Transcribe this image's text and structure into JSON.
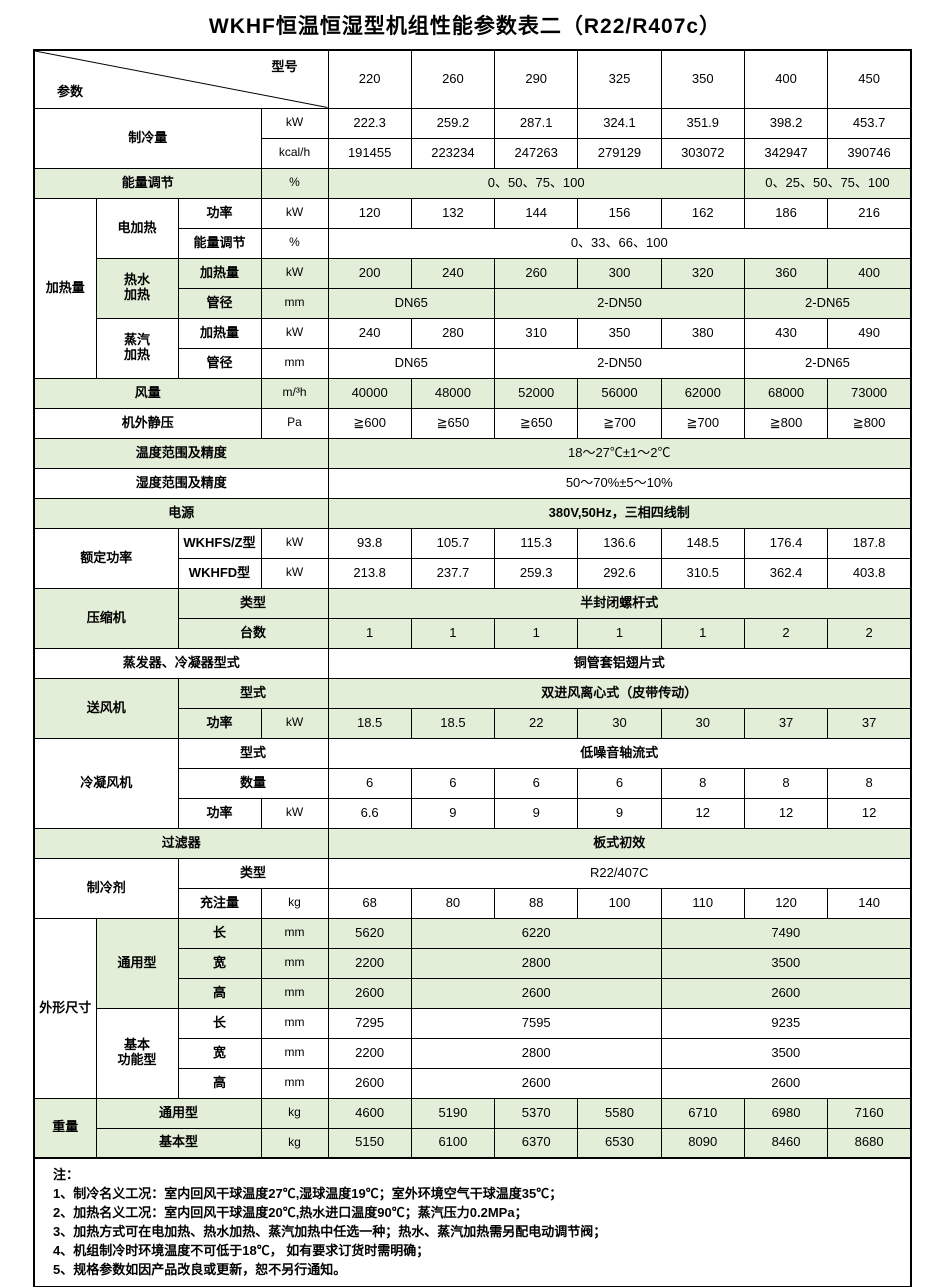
{
  "title": "WKHF恒温恒湿型机组性能参数表二（R22/R407c）",
  "colors": {
    "green_band": "#e2eed8",
    "border": "#000000",
    "background": "#ffffff"
  },
  "header": {
    "corner_top_right": "型号",
    "corner_bottom_left": "参数",
    "models": [
      "220",
      "260",
      "290",
      "325",
      "350",
      "400",
      "450"
    ]
  },
  "rows": [
    [
      {
        "t": "制冷量",
        "c": 3,
        "r": 2,
        "k": "h"
      },
      {
        "t": "kW",
        "k": "u"
      },
      {
        "t": "222.3"
      },
      {
        "t": "259.2"
      },
      {
        "t": "287.1"
      },
      {
        "t": "324.1"
      },
      {
        "t": "351.9"
      },
      {
        "t": "398.2"
      },
      {
        "t": "453.7"
      }
    ],
    [
      {
        "t": "kcal/h",
        "k": "u"
      },
      {
        "t": "191455"
      },
      {
        "t": "223234"
      },
      {
        "t": "247263"
      },
      {
        "t": "279129"
      },
      {
        "t": "303072"
      },
      {
        "t": "342947"
      },
      {
        "t": "390746"
      }
    ],
    [
      {
        "t": "能量调节",
        "c": 3,
        "k": "h",
        "g": 1
      },
      {
        "t": "%",
        "k": "u",
        "g": 1
      },
      {
        "t": "0、50、75、100",
        "c": 5,
        "g": 1
      },
      {
        "t": "0、25、50、75、100",
        "c": 2,
        "g": 1
      }
    ],
    [
      {
        "t": "加热量",
        "r": 6,
        "k": "h"
      },
      {
        "t": "电加热",
        "r": 2,
        "k": "h"
      },
      {
        "t": "功率",
        "k": "h"
      },
      {
        "t": "kW",
        "k": "u"
      },
      {
        "t": "120"
      },
      {
        "t": "132"
      },
      {
        "t": "144"
      },
      {
        "t": "156"
      },
      {
        "t": "162"
      },
      {
        "t": "186"
      },
      {
        "t": "216"
      }
    ],
    [
      {
        "t": "能量调节",
        "k": "h"
      },
      {
        "t": "%",
        "k": "u"
      },
      {
        "t": "0、33、66、100",
        "c": 7
      }
    ],
    [
      {
        "t": "热水\n加热",
        "r": 2,
        "k": "h",
        "g": 1
      },
      {
        "t": "加热量",
        "k": "h",
        "g": 1
      },
      {
        "t": "kW",
        "k": "u",
        "g": 1
      },
      {
        "t": "200",
        "g": 1
      },
      {
        "t": "240",
        "g": 1
      },
      {
        "t": "260",
        "g": 1
      },
      {
        "t": "300",
        "g": 1
      },
      {
        "t": "320",
        "g": 1
      },
      {
        "t": "360",
        "g": 1
      },
      {
        "t": "400",
        "g": 1
      }
    ],
    [
      {
        "t": "管径",
        "k": "h",
        "g": 1
      },
      {
        "t": "mm",
        "k": "u",
        "g": 1
      },
      {
        "t": "DN65",
        "c": 2,
        "g": 1
      },
      {
        "t": "2-DN50",
        "c": 3,
        "g": 1
      },
      {
        "t": "2-DN65",
        "c": 2,
        "g": 1
      }
    ],
    [
      {
        "t": "蒸汽\n加热",
        "r": 2,
        "k": "h"
      },
      {
        "t": "加热量",
        "k": "h"
      },
      {
        "t": "kW",
        "k": "u"
      },
      {
        "t": "240"
      },
      {
        "t": "280"
      },
      {
        "t": "310"
      },
      {
        "t": "350"
      },
      {
        "t": "380"
      },
      {
        "t": "430"
      },
      {
        "t": "490"
      }
    ],
    [
      {
        "t": "管径",
        "k": "h"
      },
      {
        "t": "mm",
        "k": "u"
      },
      {
        "t": "DN65",
        "c": 2
      },
      {
        "t": "2-DN50",
        "c": 3
      },
      {
        "t": "2-DN65",
        "c": 2
      }
    ],
    [
      {
        "t": "风量",
        "c": 3,
        "k": "h",
        "g": 1
      },
      {
        "t": "m/³h",
        "k": "u",
        "g": 1
      },
      {
        "t": "40000",
        "g": 1
      },
      {
        "t": "48000",
        "g": 1
      },
      {
        "t": "52000",
        "g": 1
      },
      {
        "t": "56000",
        "g": 1
      },
      {
        "t": "62000",
        "g": 1
      },
      {
        "t": "68000",
        "g": 1
      },
      {
        "t": "73000",
        "g": 1
      }
    ],
    [
      {
        "t": "机外静压",
        "c": 3,
        "k": "h"
      },
      {
        "t": "Pa",
        "k": "u"
      },
      {
        "t": "≧600"
      },
      {
        "t": "≧650"
      },
      {
        "t": "≧650"
      },
      {
        "t": "≧700"
      },
      {
        "t": "≧700"
      },
      {
        "t": "≧800"
      },
      {
        "t": "≧800"
      }
    ],
    [
      {
        "t": "温度范围及精度",
        "c": 4,
        "k": "h",
        "g": 1
      },
      {
        "t": "18～27℃±1～2℃",
        "c": 7,
        "g": 1
      }
    ],
    [
      {
        "t": "湿度范围及精度",
        "c": 4,
        "k": "h"
      },
      {
        "t": "50～70%±5～10%",
        "c": 7
      }
    ],
    [
      {
        "t": "电源",
        "c": 4,
        "k": "h",
        "g": 1
      },
      {
        "t": "380V,50Hz，三相四线制",
        "c": 7,
        "g": 1
      }
    ],
    [
      {
        "t": "额定功率",
        "c": 2,
        "r": 2,
        "k": "h"
      },
      {
        "t": "WKHFS/Z型",
        "k": "h"
      },
      {
        "t": "kW",
        "k": "u"
      },
      {
        "t": "93.8"
      },
      {
        "t": "105.7"
      },
      {
        "t": "115.3"
      },
      {
        "t": "136.6"
      },
      {
        "t": "148.5"
      },
      {
        "t": "176.4"
      },
      {
        "t": "187.8"
      }
    ],
    [
      {
        "t": "WKHFD型",
        "k": "h"
      },
      {
        "t": "kW",
        "k": "u"
      },
      {
        "t": "213.8"
      },
      {
        "t": "237.7"
      },
      {
        "t": "259.3"
      },
      {
        "t": "292.6"
      },
      {
        "t": "310.5"
      },
      {
        "t": "362.4"
      },
      {
        "t": "403.8"
      }
    ],
    [
      {
        "t": "压缩机",
        "c": 2,
        "r": 2,
        "k": "h",
        "g": 1
      },
      {
        "t": "类型",
        "c": 2,
        "k": "h",
        "g": 1
      },
      {
        "t": "半封闭螺杆式",
        "c": 7,
        "g": 1
      }
    ],
    [
      {
        "t": "台数",
        "c": 2,
        "k": "h",
        "g": 1
      },
      {
        "t": "1",
        "g": 1
      },
      {
        "t": "1",
        "g": 1
      },
      {
        "t": "1",
        "g": 1
      },
      {
        "t": "1",
        "g": 1
      },
      {
        "t": "1",
        "g": 1
      },
      {
        "t": "2",
        "g": 1
      },
      {
        "t": "2",
        "g": 1
      }
    ],
    [
      {
        "t": "蒸发器、冷凝器型式",
        "c": 4,
        "k": "h"
      },
      {
        "t": "铜管套铝翅片式",
        "c": 7
      }
    ],
    [
      {
        "t": "送风机",
        "c": 2,
        "r": 2,
        "k": "h",
        "g": 1
      },
      {
        "t": "型式",
        "c": 2,
        "k": "h",
        "g": 1
      },
      {
        "t": "双进风离心式（皮带传动）",
        "c": 7,
        "g": 1
      }
    ],
    [
      {
        "t": "功率",
        "k": "h",
        "g": 1
      },
      {
        "t": "kW",
        "k": "u",
        "g": 1
      },
      {
        "t": "18.5",
        "g": 1
      },
      {
        "t": "18.5",
        "g": 1
      },
      {
        "t": "22",
        "g": 1
      },
      {
        "t": "30",
        "g": 1
      },
      {
        "t": "30",
        "g": 1
      },
      {
        "t": "37",
        "g": 1
      },
      {
        "t": "37",
        "g": 1
      }
    ],
    [
      {
        "t": "冷凝风机",
        "c": 2,
        "r": 3,
        "k": "h"
      },
      {
        "t": "型式",
        "c": 2,
        "k": "h"
      },
      {
        "t": "低噪音轴流式",
        "c": 7
      }
    ],
    [
      {
        "t": "数量",
        "c": 2,
        "k": "h"
      },
      {
        "t": "6"
      },
      {
        "t": "6"
      },
      {
        "t": "6"
      },
      {
        "t": "6"
      },
      {
        "t": "8"
      },
      {
        "t": "8"
      },
      {
        "t": "8"
      }
    ],
    [
      {
        "t": "功率",
        "k": "h"
      },
      {
        "t": "kW",
        "k": "u"
      },
      {
        "t": "6.6"
      },
      {
        "t": "9"
      },
      {
        "t": "9"
      },
      {
        "t": "9"
      },
      {
        "t": "12"
      },
      {
        "t": "12"
      },
      {
        "t": "12"
      }
    ],
    [
      {
        "t": "过滤器",
        "c": 4,
        "k": "h",
        "g": 1
      },
      {
        "t": "板式初效",
        "c": 7,
        "g": 1
      }
    ],
    [
      {
        "t": "制冷剂",
        "c": 2,
        "r": 2,
        "k": "h"
      },
      {
        "t": "类型",
        "c": 2,
        "k": "h"
      },
      {
        "t": "R22/407C",
        "c": 7
      }
    ],
    [
      {
        "t": "充注量",
        "k": "h"
      },
      {
        "t": "kg",
        "k": "u"
      },
      {
        "t": "68"
      },
      {
        "t": "80"
      },
      {
        "t": "88"
      },
      {
        "t": "100"
      },
      {
        "t": "110"
      },
      {
        "t": "120"
      },
      {
        "t": "140"
      }
    ],
    [
      {
        "t": "外形尺寸",
        "r": 6,
        "k": "h"
      },
      {
        "t": "通用型",
        "r": 3,
        "k": "h",
        "g": 1
      },
      {
        "t": "长",
        "k": "h",
        "g": 1
      },
      {
        "t": "mm",
        "k": "u",
        "g": 1
      },
      {
        "t": "5620",
        "g": 1
      },
      {
        "t": "6220",
        "c": 3,
        "g": 1
      },
      {
        "t": "7490",
        "c": 3,
        "g": 1
      }
    ],
    [
      {
        "t": "宽",
        "k": "h",
        "g": 1
      },
      {
        "t": "mm",
        "k": "u",
        "g": 1
      },
      {
        "t": "2200",
        "g": 1
      },
      {
        "t": "2800",
        "c": 3,
        "g": 1
      },
      {
        "t": "3500",
        "c": 3,
        "g": 1
      }
    ],
    [
      {
        "t": "高",
        "k": "h",
        "g": 1
      },
      {
        "t": "mm",
        "k": "u",
        "g": 1
      },
      {
        "t": "2600",
        "g": 1
      },
      {
        "t": "2600",
        "c": 3,
        "g": 1
      },
      {
        "t": "2600",
        "c": 3,
        "g": 1
      }
    ],
    [
      {
        "t": "基本\n功能型",
        "r": 3,
        "k": "h"
      },
      {
        "t": "长",
        "k": "h"
      },
      {
        "t": "mm",
        "k": "u"
      },
      {
        "t": "7295"
      },
      {
        "t": "7595",
        "c": 3
      },
      {
        "t": "9235",
        "c": 3
      }
    ],
    [
      {
        "t": "宽",
        "k": "h"
      },
      {
        "t": "mm",
        "k": "u"
      },
      {
        "t": "2200"
      },
      {
        "t": "2800",
        "c": 3
      },
      {
        "t": "3500",
        "c": 3
      }
    ],
    [
      {
        "t": "高",
        "k": "h"
      },
      {
        "t": "mm",
        "k": "u"
      },
      {
        "t": "2600"
      },
      {
        "t": "2600",
        "c": 3
      },
      {
        "t": "2600",
        "c": 3
      }
    ],
    [
      {
        "t": "重量",
        "r": 2,
        "k": "h",
        "g": 1
      },
      {
        "t": "通用型",
        "c": 2,
        "k": "h",
        "g": 1
      },
      {
        "t": "kg",
        "k": "u",
        "g": 1
      },
      {
        "t": "4600",
        "g": 1
      },
      {
        "t": "5190",
        "g": 1
      },
      {
        "t": "5370",
        "g": 1
      },
      {
        "t": "5580",
        "g": 1
      },
      {
        "t": "6710",
        "g": 1
      },
      {
        "t": "6980",
        "g": 1
      },
      {
        "t": "7160",
        "g": 1
      }
    ],
    [
      {
        "t": "基本型",
        "c": 2,
        "k": "h",
        "g": 1
      },
      {
        "t": "kg",
        "k": "u",
        "g": 1
      },
      {
        "t": "5150",
        "g": 1
      },
      {
        "t": "6100",
        "g": 1
      },
      {
        "t": "6370",
        "g": 1
      },
      {
        "t": "6530",
        "g": 1
      },
      {
        "t": "8090",
        "g": 1
      },
      {
        "t": "8460",
        "g": 1
      },
      {
        "t": "8680",
        "g": 1
      }
    ]
  ],
  "notes": {
    "label": "注：",
    "items": [
      "1、制冷名义工况：室内回风干球温度27℃,湿球温度19℃；室外环境空气干球温度35℃；",
      "2、加热名义工况：室内回风干球温度20℃,热水进口温度90℃；蒸汽压力0.2MPa；",
      "3、加热方式可在电加热、热水加热、蒸汽加热中任选一种；热水、蒸汽加热需另配电动调节阀；",
      "4、机组制冷时环境温度不可低于18℃， 如有要求订货时需明确；",
      "5、规格参数如因产品改良或更新，恕不另行通知。"
    ]
  }
}
